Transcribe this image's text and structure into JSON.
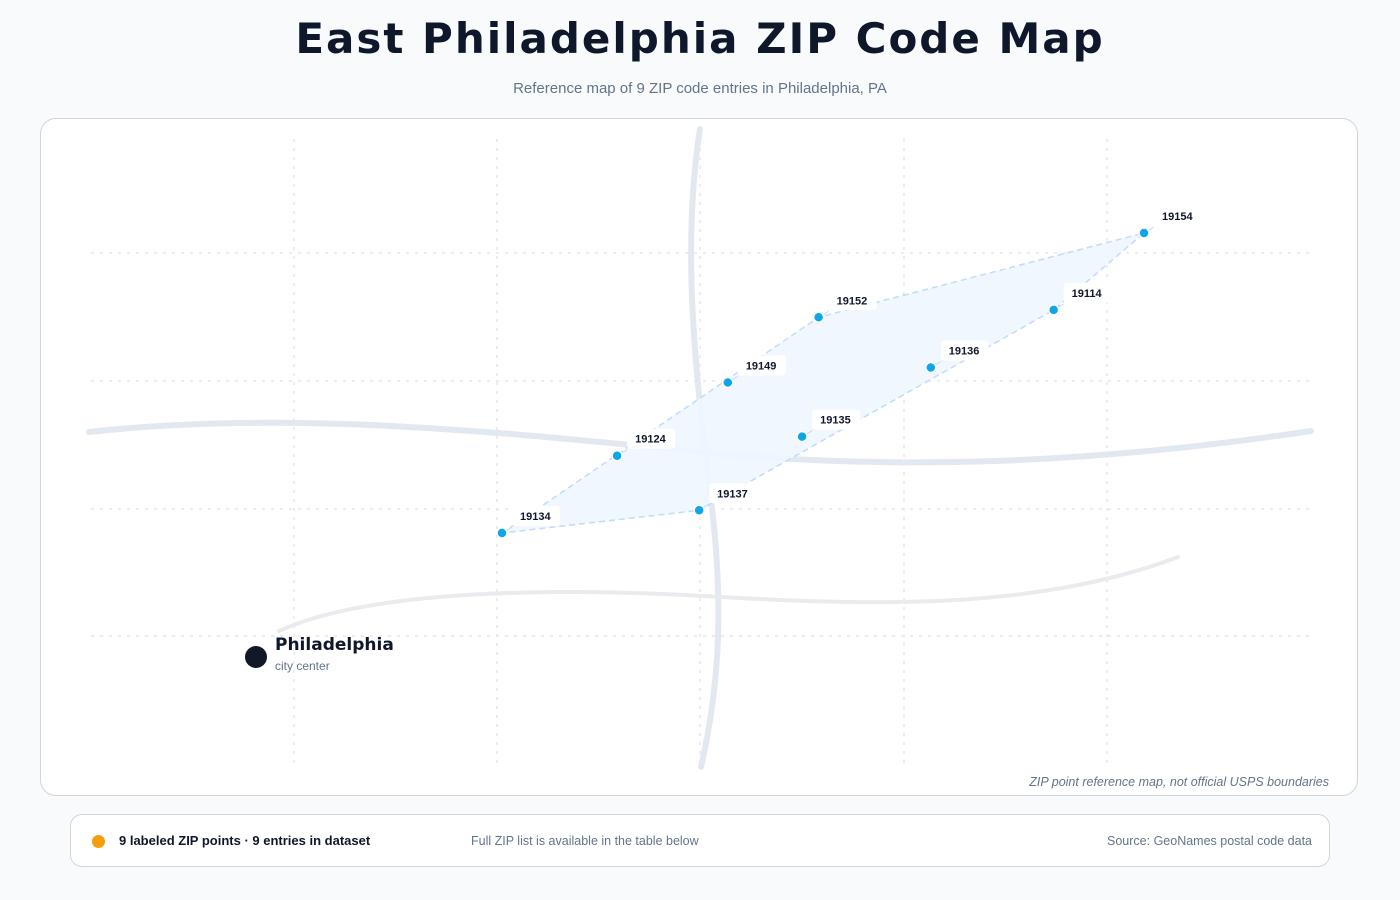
{
  "header": {
    "title": "East Philadelphia ZIP Code Map",
    "subtitle": "Reference map of 9 ZIP code entries in Philadelphia, PA"
  },
  "map": {
    "disclaimer": "ZIP point reference map, not official USPS boundaries",
    "city": {
      "name": "Philadelphia",
      "sublabel": "city center",
      "lon": -75.1652,
      "lat": 39.9526
    },
    "zip_points": [
      {
        "zip": "19134",
        "lon": -75.1126,
        "lat": 39.9925
      },
      {
        "zip": "19137",
        "lon": -75.072,
        "lat": 39.9993
      },
      {
        "zip": "19124",
        "lon": -75.0889,
        "lat": 40.0156
      },
      {
        "zip": "19135",
        "lon": -75.0508,
        "lat": 40.0213
      },
      {
        "zip": "19149",
        "lon": -75.0661,
        "lat": 40.0375
      },
      {
        "zip": "19136",
        "lon": -75.0243,
        "lat": 40.042
      },
      {
        "zip": "19152",
        "lon": -75.0474,
        "lat": 40.057
      },
      {
        "zip": "19114",
        "lon": -74.999,
        "lat": 40.0592
      },
      {
        "zip": "19154",
        "lon": -74.9804,
        "lat": 40.0822
      }
    ],
    "colors": {
      "point": "#0ea5e9",
      "hull_fill": "#eff6ff",
      "hull_stroke": "#bfdbfe",
      "city": "#111827",
      "road": "#e2e8f0"
    }
  },
  "legend": {
    "summary": "9 labeled ZIP points · 9 entries in dataset",
    "note": "Full ZIP list is available in the table below",
    "source": "Source: GeoNames postal code data",
    "dot_color": "#f59e0b"
  }
}
